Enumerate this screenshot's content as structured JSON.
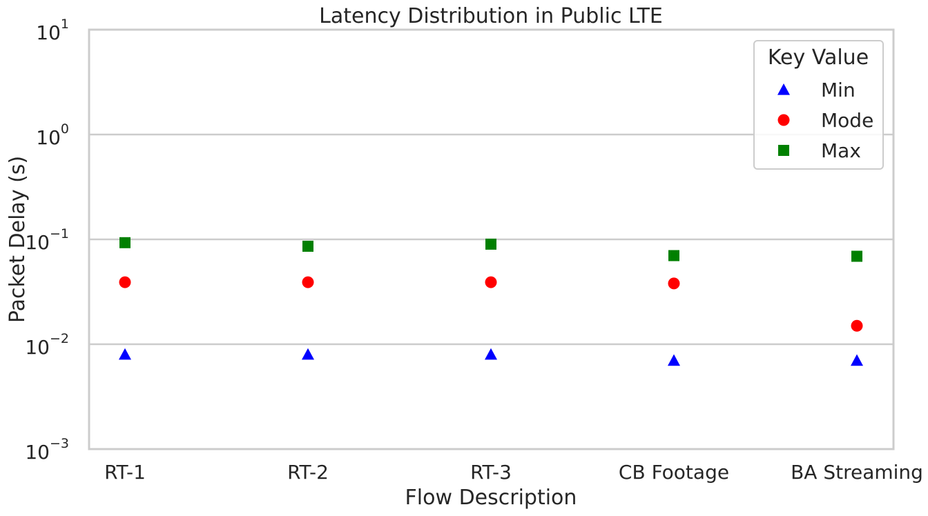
{
  "chart_data": {
    "type": "scatter",
    "title": "Latency Distribution in Public LTE",
    "xlabel": "Flow Description",
    "ylabel": "Packet Delay (s)",
    "categories": [
      "RT-1",
      "RT-2",
      "RT-3",
      "CB Footage",
      "BA Streaming"
    ],
    "y_scale": "log",
    "ylim": [
      0.001,
      10
    ],
    "y_ticks": [
      {
        "base": "10",
        "exp": "1",
        "value": 10
      },
      {
        "base": "10",
        "exp": "0",
        "value": 1
      },
      {
        "base": "10",
        "exp": "−1",
        "value": 0.1
      },
      {
        "base": "10",
        "exp": "−2",
        "value": 0.01
      },
      {
        "base": "10",
        "exp": "−3",
        "value": 0.001
      }
    ],
    "grid": "horizontal",
    "legend": {
      "title": "Key Value",
      "position": "top-right"
    },
    "series": [
      {
        "name": "Min",
        "marker": "triangle",
        "color": "#0000ff",
        "values": [
          0.008,
          0.008,
          0.008,
          0.007,
          0.007
        ]
      },
      {
        "name": "Mode",
        "marker": "circle",
        "color": "#ff0000",
        "values": [
          0.039,
          0.039,
          0.039,
          0.038,
          0.015
        ]
      },
      {
        "name": "Max",
        "marker": "square",
        "color": "#008000",
        "values": [
          0.093,
          0.086,
          0.09,
          0.07,
          0.069
        ]
      }
    ]
  }
}
